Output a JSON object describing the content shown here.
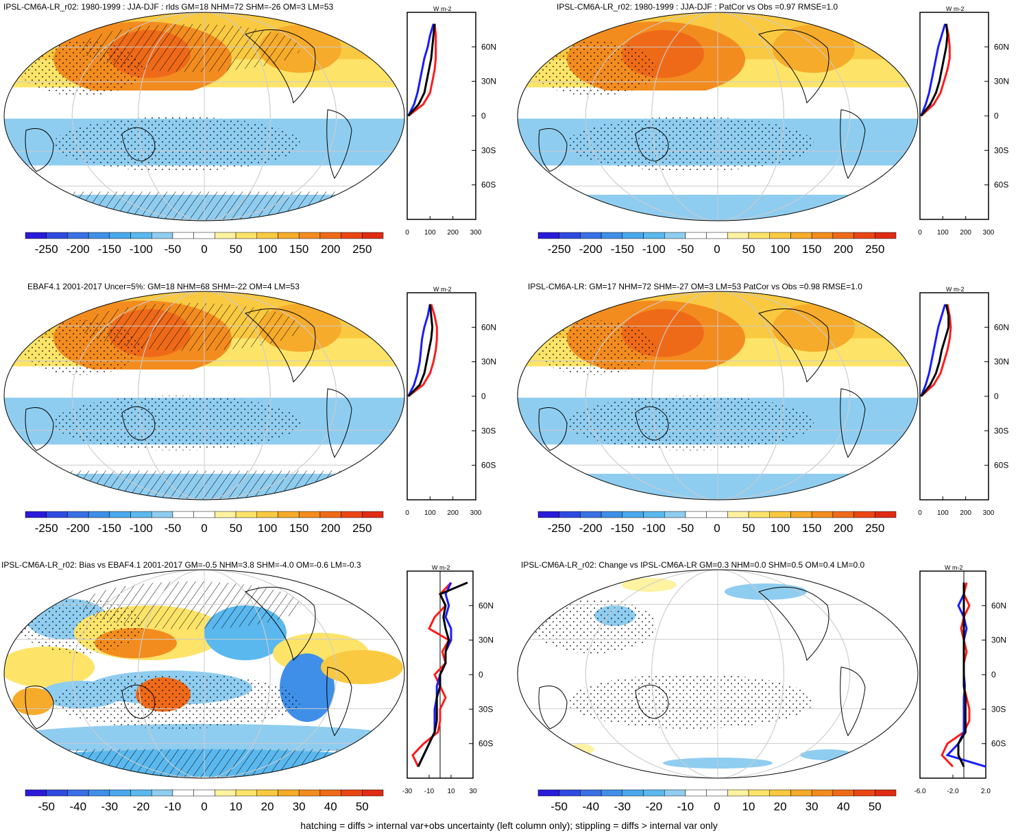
{
  "footer_note": "hatching = diffs > internal var+obs uncertainty (left column only); stippling = diffs > internal var only",
  "colors": {
    "cb_abs": [
      "#2a1bd9",
      "#2f4ae0",
      "#3a70e6",
      "#3f8fe8",
      "#4aa8ee",
      "#5ab8ee",
      "#8fcdf0",
      "#ffffff",
      "#ffffff",
      "#fff2a0",
      "#fde469",
      "#f9c941",
      "#f6ab2a",
      "#f38c1f",
      "#ef6a18",
      "#ea4614",
      "#e02b12"
    ],
    "cb_diff": [
      "#2a1bd9",
      "#2f4ae0",
      "#3a70e6",
      "#3f8fe8",
      "#4aa8ee",
      "#5ab8ee",
      "#8fcdf0",
      "#ffffff",
      "#ffffff",
      "#fff2a0",
      "#fde469",
      "#f9c941",
      "#f6ab2a",
      "#f38c1f",
      "#ef6a18",
      "#ea4614",
      "#e02b12"
    ],
    "series": {
      "red": "#ff1a1a",
      "blue": "#1a1aff",
      "black": "#000000"
    }
  },
  "lat_ticks": [
    "60N",
    "30N",
    "0",
    "30S",
    "60S"
  ],
  "panels": [
    {
      "title": "IPSL-CM6A-LR_r02: 1980-1999 : JJA-DJF : rlds GM=18 NHM=72 SHM=-26 OM=3 LM=53",
      "cb_labels": [
        "-250",
        "-200",
        "-150",
        "-100",
        "-50",
        "0",
        "50",
        "100",
        "150",
        "200",
        "250"
      ],
      "zonal_units": "W m-2",
      "zonal_xticks": [
        "0",
        "100",
        "200",
        "300"
      ]
    },
    {
      "title": "IPSL-CM6A-LR_r02: 1980-1999 : JJA-DJF : PatCor vs Obs =0.97 RMSE=1.0",
      "cb_labels": [
        "-250",
        "-200",
        "-150",
        "-100",
        "-50",
        "0",
        "50",
        "100",
        "150",
        "200",
        "250"
      ],
      "zonal_units": "W m-2",
      "zonal_xticks": [
        "0",
        "100",
        "200",
        "300"
      ]
    },
    {
      "title": "EBAF4.1 2001-2017 Uncer=5%: GM=18 NHM=68 SHM=-22 OM=4 LM=53",
      "cb_labels": [
        "-250",
        "-200",
        "-150",
        "-100",
        "-50",
        "0",
        "50",
        "100",
        "150",
        "200",
        "250"
      ],
      "zonal_units": "W m-2",
      "zonal_xticks": [
        "0",
        "100",
        "200",
        "300"
      ]
    },
    {
      "title": "IPSL-CM6A-LR: GM=17 NHM=72 SHM=-27 OM=3 LM=53 PatCor vs Obs =0.98 RMSE=1.0",
      "cb_labels": [
        "-250",
        "-200",
        "-150",
        "-100",
        "-50",
        "0",
        "50",
        "100",
        "150",
        "200",
        "250"
      ],
      "zonal_units": "W m-2",
      "zonal_xticks": [
        "0",
        "100",
        "200",
        "300"
      ]
    },
    {
      "title": "IPSL-CM6A-LR_r02: Bias vs EBAF4.1 2001-2017 GM=-0.5 NHM=3.8 SHM=-4.0 OM=-0.6 LM=-0.3",
      "cb_labels": [
        "-50",
        "-40",
        "-30",
        "-20",
        "-10",
        "0",
        "10",
        "20",
        "30",
        "40",
        "50"
      ],
      "zonal_units": "W m-2",
      "zonal_xticks": [
        "-30",
        "-10",
        "10",
        "30"
      ]
    },
    {
      "title": "IPSL-CM6A-LR_r02: Change vs IPSL-CM6A-LR GM=0.3 NHM=0.0 SHM=0.5 OM=0.4 LM=0.0",
      "cb_labels": [
        "-50",
        "-40",
        "-30",
        "-20",
        "-10",
        "0",
        "10",
        "20",
        "30",
        "40",
        "50"
      ],
      "zonal_units": "W m-2",
      "zonal_xticks": [
        "-6.0",
        "-2.0",
        "2.0"
      ]
    }
  ],
  "chart_data": [
    {
      "type": "line",
      "title": "IPSL-CM6A-LR_r02: 1980-1999 : JJA-DJF : rlds GM=18 NHM=72 SHM=-26 OM=3 LM=53",
      "xlim": [
        0,
        300
      ],
      "y": [
        0,
        10,
        20,
        30,
        40,
        50,
        60,
        70,
        80
      ],
      "series": [
        {
          "color": "red",
          "values": [
            5,
            70,
            100,
            110,
            120,
            125,
            125,
            125,
            120
          ]
        },
        {
          "color": "blue",
          "values": [
            5,
            30,
            45,
            55,
            65,
            75,
            90,
            100,
            115
          ]
        },
        {
          "color": "black",
          "values": [
            5,
            50,
            75,
            85,
            95,
            105,
            110,
            115,
            120
          ]
        }
      ]
    },
    {
      "type": "line",
      "title": "IPSL-CM6A-LR_r02: 1980-1999 : JJA-DJF : PatCor vs Obs =0.97 RMSE=1.0",
      "xlim": [
        0,
        300
      ],
      "y": [
        0,
        10,
        20,
        30,
        40,
        50,
        60,
        70,
        80
      ],
      "series": [
        {
          "color": "red",
          "values": [
            5,
            60,
            90,
            105,
            120,
            130,
            130,
            125,
            115
          ]
        },
        {
          "color": "blue",
          "values": [
            5,
            25,
            40,
            50,
            60,
            70,
            80,
            95,
            110
          ]
        },
        {
          "color": "black",
          "values": [
            5,
            45,
            70,
            85,
            95,
            105,
            115,
            120,
            115
          ]
        }
      ]
    },
    {
      "type": "line",
      "title": "EBAF4.1 2001-2017 Uncer=5%: GM=18 NHM=68 SHM=-22 OM=4 LM=53",
      "xlim": [
        0,
        300
      ],
      "y": [
        0,
        10,
        20,
        30,
        40,
        50,
        60,
        70,
        80
      ],
      "series": [
        {
          "color": "red",
          "values": [
            5,
            70,
            100,
            115,
            125,
            130,
            130,
            120,
            105
          ]
        },
        {
          "color": "blue",
          "values": [
            5,
            30,
            45,
            55,
            60,
            65,
            75,
            90,
            100
          ]
        },
        {
          "color": "black",
          "values": [
            5,
            55,
            75,
            85,
            95,
            105,
            110,
            105,
            100
          ]
        }
      ]
    },
    {
      "type": "line",
      "title": "IPSL-CM6A-LR: GM=17 NHM=72 SHM=-27 OM=3 LM=53 PatCor vs Obs =0.98 RMSE=1.0",
      "xlim": [
        0,
        300
      ],
      "y": [
        0,
        10,
        20,
        30,
        40,
        50,
        60,
        70,
        80
      ],
      "series": [
        {
          "color": "red",
          "values": [
            5,
            60,
            90,
            105,
            120,
            130,
            135,
            130,
            120
          ]
        },
        {
          "color": "blue",
          "values": [
            5,
            25,
            40,
            50,
            60,
            70,
            80,
            95,
            110
          ]
        },
        {
          "color": "black",
          "values": [
            5,
            45,
            70,
            85,
            95,
            110,
            125,
            125,
            115
          ]
        }
      ]
    },
    {
      "type": "line",
      "title": "IPSL-CM6A-LR_r02: Bias vs EBAF4.1 2001-2017 GM=-0.5 NHM=3.8 SHM=-4.0 OM=-0.6 LM=-0.3",
      "xlim": [
        -30,
        30
      ],
      "y": [
        -80,
        -70,
        -60,
        -50,
        -40,
        -30,
        -20,
        -10,
        0,
        10,
        20,
        30,
        40,
        50,
        60,
        70,
        80
      ],
      "series": [
        {
          "color": "red",
          "values": [
            -20,
            -25,
            -15,
            -2,
            0,
            0,
            5,
            0,
            -5,
            5,
            2,
            8,
            -10,
            -5,
            5,
            0,
            10
          ]
        },
        {
          "color": "blue",
          "values": [
            -20,
            -15,
            -10,
            -5,
            -5,
            -5,
            -3,
            -3,
            0,
            5,
            5,
            10,
            10,
            5,
            8,
            5,
            10
          ]
        },
        {
          "color": "black",
          "values": [
            -20,
            -15,
            -10,
            -5,
            -3,
            -3,
            -3,
            0,
            0,
            5,
            5,
            8,
            5,
            3,
            5,
            0,
            25
          ]
        }
      ]
    },
    {
      "type": "line",
      "title": "IPSL-CM6A-LR_r02: Change vs IPSL-CM6A-LR GM=0.3 NHM=0.0 SHM=0.5 OM=0.4 LM=0.0",
      "xlim": [
        -8,
        4
      ],
      "y": [
        -80,
        -70,
        -60,
        -50,
        -40,
        -30,
        -20,
        -10,
        0,
        10,
        20,
        30,
        40,
        50,
        60,
        70,
        80
      ],
      "series": [
        {
          "color": "red",
          "values": [
            -2,
            -4,
            -3,
            0,
            1,
            1,
            0.5,
            0,
            0,
            0,
            0.5,
            0,
            -0.5,
            0,
            1,
            0,
            0.5
          ]
        },
        {
          "color": "blue",
          "values": [
            4,
            -3,
            -1,
            0,
            0,
            0,
            0,
            0.2,
            0,
            0,
            0,
            0,
            0.5,
            0,
            -1,
            0,
            0
          ]
        },
        {
          "color": "black",
          "values": [
            0,
            -1,
            -1,
            0.3,
            0.3,
            0.3,
            0.3,
            0,
            0,
            0,
            0,
            0,
            0,
            0,
            0,
            0,
            0
          ]
        }
      ]
    }
  ]
}
